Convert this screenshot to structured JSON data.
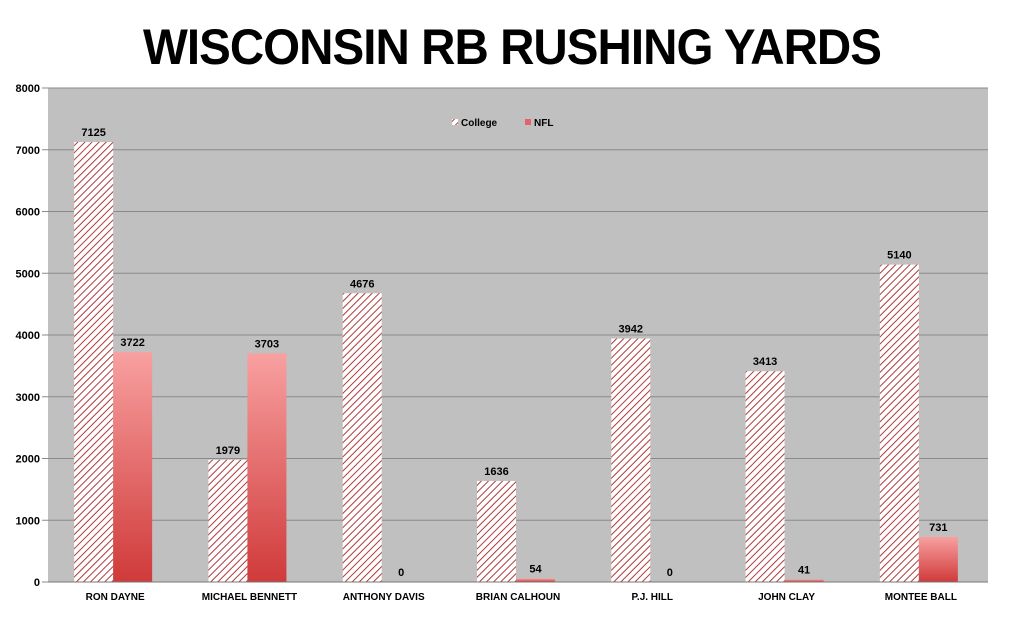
{
  "chart_data": {
    "type": "bar",
    "title": "WISCONSIN RB RUSHING YARDS",
    "categories": [
      "RON DAYNE",
      "MICHAEL BENNETT",
      "ANTHONY DAVIS",
      "BRIAN CALHOUN",
      "P.J. HILL",
      "JOHN CLAY",
      "MONTEE BALL"
    ],
    "series": [
      {
        "name": "College",
        "values": [
          7125,
          1979,
          4676,
          1636,
          3942,
          3413,
          5140
        ],
        "color": "#c0504d",
        "style": "diagonal-hatch"
      },
      {
        "name": "NFL",
        "values": [
          3722,
          3703,
          0,
          54,
          0,
          41,
          731
        ],
        "color": "#e8504d",
        "style": "vertical-gradient"
      }
    ],
    "ylim": [
      0,
      8000
    ],
    "yticks": [
      0,
      1000,
      2000,
      3000,
      4000,
      5000,
      6000,
      7000,
      8000
    ],
    "grid": true,
    "legend": "top-center",
    "background": "#c0c0c0",
    "xlabel": "",
    "ylabel": ""
  }
}
